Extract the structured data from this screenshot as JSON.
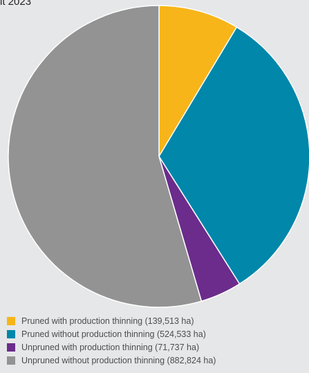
{
  "title": "it 2023",
  "chart_data": {
    "type": "pie",
    "title": "it 2023",
    "unit": "ha",
    "slices": [
      {
        "label": "Pruned with production thinning (139,513 ha)",
        "value": 139513,
        "color": "#f7b519"
      },
      {
        "label": "Pruned without production thinning (524,533 ha)",
        "value": 524533,
        "color": "#0087aa"
      },
      {
        "label": "Unpruned with production thinning (71,737 ha)",
        "value": 71737,
        "color": "#6b2c8b"
      },
      {
        "label": "Unpruned without production thinning (882,824 ha)",
        "value": 882824,
        "color": "#939393"
      }
    ],
    "legend_position": "bottom-left"
  }
}
